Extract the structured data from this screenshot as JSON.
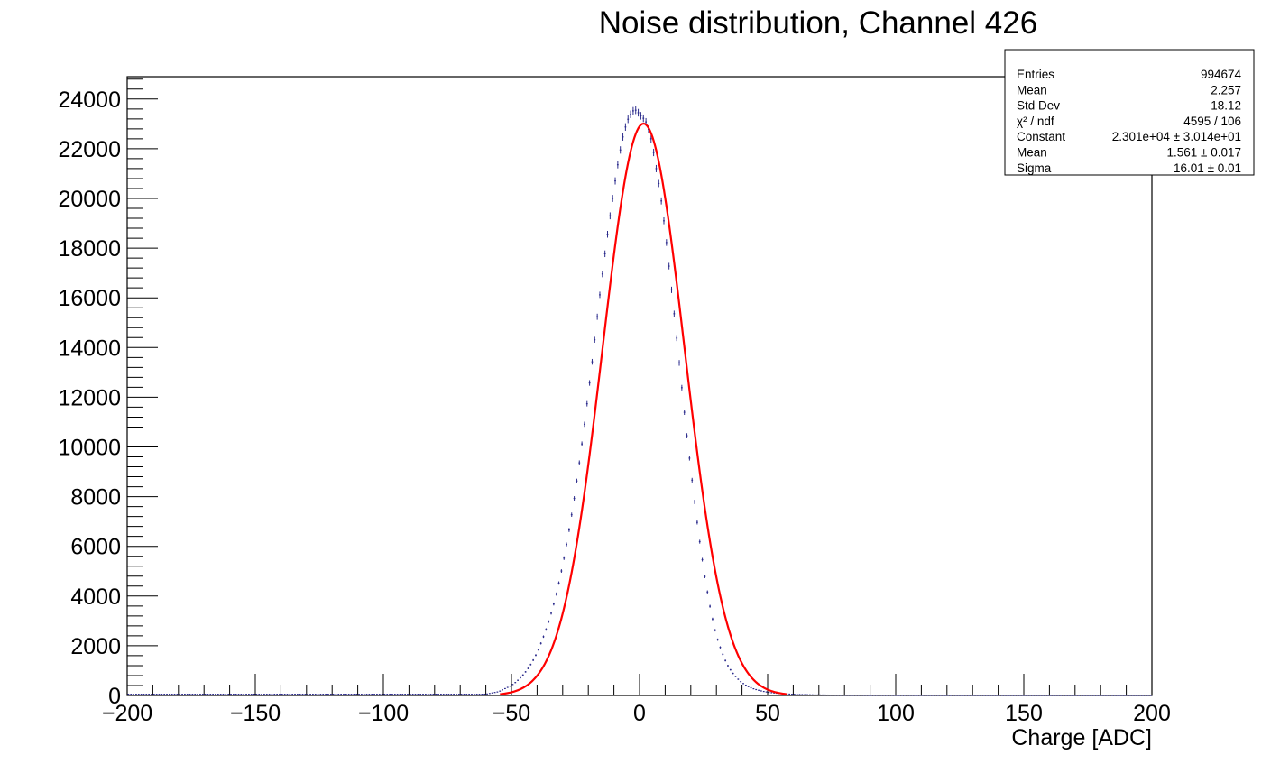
{
  "chart_data": {
    "type": "line",
    "title": "Noise distribution, Channel 426",
    "xlabel": "Charge [ADC]",
    "ylabel": "",
    "xlim": [
      -200,
      200
    ],
    "ylim": [
      0,
      24900
    ],
    "x_ticks": [
      -200,
      -150,
      -100,
      -50,
      0,
      50,
      100,
      150,
      200
    ],
    "x_tick_labels": [
      "−200",
      "−150",
      "−100",
      "−50",
      "0",
      "50",
      "100",
      "150",
      "200"
    ],
    "y_ticks": [
      0,
      2000,
      4000,
      6000,
      8000,
      10000,
      12000,
      14000,
      16000,
      18000,
      20000,
      22000,
      24000
    ],
    "y_tick_labels": [
      "0",
      "2000",
      "4000",
      "6000",
      "8000",
      "10000",
      "12000",
      "14000",
      "16000",
      "18000",
      "20000",
      "22000",
      "24000"
    ],
    "bin_width": 1,
    "series": [
      {
        "kind": "histogram-points",
        "color": "#2b2b8c",
        "x": [
          -60,
          -55,
          -50,
          -48,
          -46,
          -44,
          -42,
          -40,
          -38,
          -36,
          -34,
          -32,
          -30,
          -28,
          -26,
          -24,
          -22,
          -20,
          -18,
          -16,
          -14,
          -12,
          -10,
          -9,
          -8,
          -7,
          -6,
          -5,
          -4,
          -3,
          -2,
          -1,
          0,
          1,
          2,
          3,
          4,
          5,
          6,
          7,
          8,
          10,
          12,
          14,
          16,
          18,
          20,
          22,
          24,
          26,
          28,
          30,
          32,
          34,
          36,
          38,
          40,
          42,
          44,
          46,
          48,
          50,
          52,
          54,
          56,
          58,
          60,
          62,
          65,
          70,
          75,
          80,
          90,
          100,
          120,
          150,
          180,
          200
        ],
        "y": [
          50,
          150,
          400,
          560,
          760,
          1010,
          1320,
          1720,
          2220,
          2800,
          3480,
          4280,
          5250,
          6350,
          7580,
          8980,
          10500,
          12150,
          13850,
          15700,
          17380,
          18950,
          20350,
          21060,
          21650,
          22250,
          22700,
          23050,
          23320,
          23450,
          23600,
          23500,
          23400,
          23250,
          23200,
          22960,
          22600,
          22200,
          21500,
          20900,
          20300,
          18700,
          16800,
          14880,
          12880,
          10900,
          9100,
          7350,
          5800,
          4450,
          3300,
          2400,
          1780,
          1280,
          950,
          700,
          510,
          380,
          285,
          220,
          170,
          130,
          105,
          85,
          70,
          58,
          48,
          40,
          30,
          20,
          14,
          10,
          6,
          4,
          2,
          1,
          0,
          0
        ]
      },
      {
        "kind": "gaussian-fit",
        "color": "#ff0000",
        "constant": 23010,
        "mean": 1.561,
        "sigma": 16.01
      }
    ]
  },
  "stats_box": {
    "rows": [
      {
        "label": "Entries",
        "value": "994674"
      },
      {
        "label": "Mean",
        "value": "2.257"
      },
      {
        "label": "Std Dev",
        "value": "18.12"
      },
      {
        "label": "χ² / ndf",
        "value": "4595 / 106"
      },
      {
        "label": "Constant",
        "value": "2.301e+04 ± 3.014e+01"
      },
      {
        "label": "Mean",
        "value": "1.561 ± 0.017"
      },
      {
        "label": "Sigma",
        "value": "16.01 ± 0.01"
      }
    ]
  }
}
